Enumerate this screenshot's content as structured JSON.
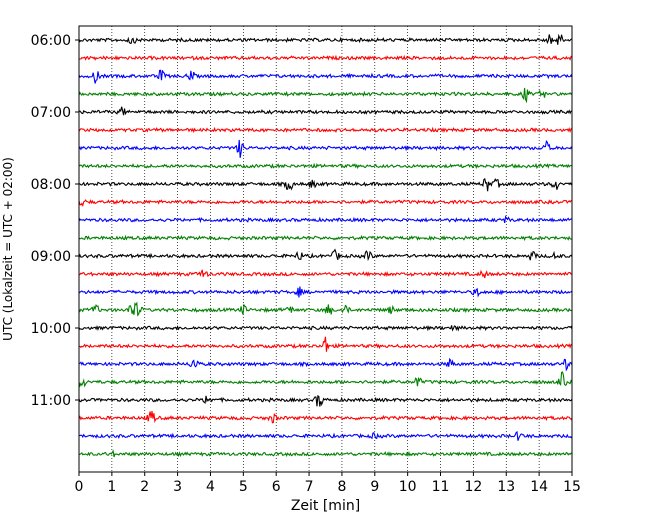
{
  "chart_data": {
    "type": "line",
    "title": "",
    "xlabel": "Zeit  [min]",
    "ylabel": "UTC (Lokalzeit = UTC + 02:00)",
    "xlim": [
      0,
      15
    ],
    "x_ticks": [
      0,
      1,
      2,
      3,
      4,
      5,
      6,
      7,
      8,
      9,
      10,
      11,
      12,
      13,
      14,
      15
    ],
    "x_tick_labels": [
      "0",
      "1",
      "2",
      "3",
      "4",
      "5",
      "6",
      "7",
      "8",
      "9",
      "10",
      "11",
      "12",
      "13",
      "14",
      "15"
    ],
    "y_tick_labels": [
      "06:00",
      "07:00",
      "08:00",
      "09:00",
      "10:00",
      "11:00"
    ],
    "y_tick_rows": [
      0,
      4,
      8,
      12,
      16,
      20
    ],
    "grid": "vertical-dotted",
    "trace_colors": [
      "#000000",
      "#ff0000",
      "#0000ff",
      "#008000"
    ],
    "traces": [
      {
        "start": "06:00",
        "color": "#000000",
        "events": [
          {
            "t": 1.6,
            "a": 0.5
          },
          {
            "t": 14.3,
            "a": 0.6
          },
          {
            "t": 14.6,
            "a": 1.0
          }
        ]
      },
      {
        "start": "06:15",
        "color": "#ff0000",
        "events": []
      },
      {
        "start": "06:30",
        "color": "#0000ff",
        "events": [
          {
            "t": 0.5,
            "a": 0.8
          },
          {
            "t": 2.5,
            "a": 0.7
          },
          {
            "t": 3.4,
            "a": 0.6
          }
        ]
      },
      {
        "start": "06:45",
        "color": "#008000",
        "events": [
          {
            "t": 13.6,
            "a": 0.9
          },
          {
            "t": 14.1,
            "a": 0.4
          }
        ]
      },
      {
        "start": "07:00",
        "color": "#000000",
        "events": [
          {
            "t": 1.3,
            "a": 0.5
          }
        ]
      },
      {
        "start": "07:15",
        "color": "#ff0000",
        "events": []
      },
      {
        "start": "07:30",
        "color": "#0000ff",
        "events": [
          {
            "t": 4.9,
            "a": 1.0
          },
          {
            "t": 14.2,
            "a": 0.8
          }
        ]
      },
      {
        "start": "07:45",
        "color": "#008000",
        "events": []
      },
      {
        "start": "08:00",
        "color": "#000000",
        "events": [
          {
            "t": 6.4,
            "a": 0.9
          },
          {
            "t": 7.1,
            "a": 0.4
          },
          {
            "t": 12.4,
            "a": 1.0
          },
          {
            "t": 12.7,
            "a": 0.5
          },
          {
            "t": 14.5,
            "a": 0.8
          }
        ]
      },
      {
        "start": "08:15",
        "color": "#ff0000",
        "events": [
          {
            "t": 0.1,
            "a": 0.4
          }
        ]
      },
      {
        "start": "08:30",
        "color": "#0000ff",
        "events": [
          {
            "t": 13.0,
            "a": 0.3
          }
        ]
      },
      {
        "start": "08:45",
        "color": "#008000",
        "events": []
      },
      {
        "start": "09:00",
        "color": "#000000",
        "events": [
          {
            "t": 6.7,
            "a": 0.5
          },
          {
            "t": 7.8,
            "a": 0.6
          },
          {
            "t": 8.8,
            "a": 0.6
          },
          {
            "t": 13.8,
            "a": 0.6
          },
          {
            "t": 14.5,
            "a": 0.4
          }
        ]
      },
      {
        "start": "09:15",
        "color": "#ff0000",
        "events": [
          {
            "t": 3.8,
            "a": 0.6
          },
          {
            "t": 12.3,
            "a": 0.5
          }
        ]
      },
      {
        "start": "09:30",
        "color": "#0000ff",
        "events": [
          {
            "t": 6.7,
            "a": 0.5
          },
          {
            "t": 12.1,
            "a": 0.5
          }
        ]
      },
      {
        "start": "09:45",
        "color": "#008000",
        "events": [
          {
            "t": 0.5,
            "a": 0.6
          },
          {
            "t": 1.6,
            "a": 1.0
          },
          {
            "t": 1.8,
            "a": 0.9
          },
          {
            "t": 5.0,
            "a": 0.5
          },
          {
            "t": 6.4,
            "a": 0.5
          },
          {
            "t": 7.6,
            "a": 0.6
          },
          {
            "t": 8.1,
            "a": 0.5
          },
          {
            "t": 9.5,
            "a": 0.4
          }
        ]
      },
      {
        "start": "10:00",
        "color": "#000000",
        "events": [
          {
            "t": 11.4,
            "a": 0.3
          }
        ]
      },
      {
        "start": "10:15",
        "color": "#ff0000",
        "events": [
          {
            "t": 7.5,
            "a": 1.0
          }
        ]
      },
      {
        "start": "10:30",
        "color": "#0000ff",
        "events": [
          {
            "t": 3.5,
            "a": 0.8
          },
          {
            "t": 11.3,
            "a": 0.5
          },
          {
            "t": 14.8,
            "a": 0.6
          }
        ]
      },
      {
        "start": "10:45",
        "color": "#008000",
        "events": [
          {
            "t": 0.1,
            "a": 0.7
          },
          {
            "t": 10.3,
            "a": 0.6
          },
          {
            "t": 14.7,
            "a": 1.0
          }
        ]
      },
      {
        "start": "11:00",
        "color": "#000000",
        "events": [
          {
            "t": 3.9,
            "a": 0.6
          },
          {
            "t": 7.3,
            "a": 1.0
          }
        ]
      },
      {
        "start": "11:15",
        "color": "#ff0000",
        "events": [
          {
            "t": 2.2,
            "a": 0.9
          },
          {
            "t": 5.9,
            "a": 0.5
          }
        ]
      },
      {
        "start": "11:30",
        "color": "#0000ff",
        "events": [
          {
            "t": 9.0,
            "a": 0.3
          },
          {
            "t": 13.4,
            "a": 0.6
          }
        ]
      },
      {
        "start": "11:45",
        "color": "#008000",
        "events": [
          {
            "t": 1.0,
            "a": 0.3
          }
        ]
      }
    ]
  }
}
